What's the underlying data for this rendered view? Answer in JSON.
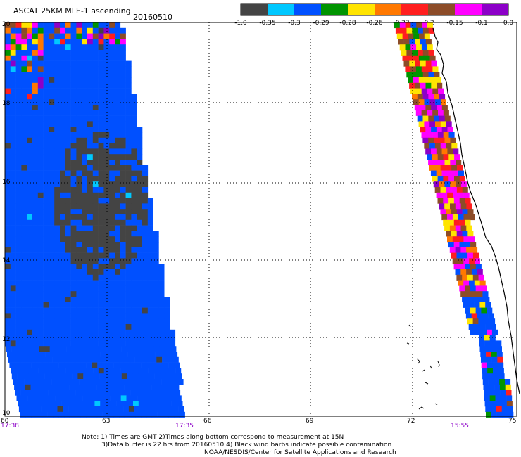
{
  "header": {
    "title": "ASCAT 25KM MLE-1  ascending",
    "date": "20160510"
  },
  "colorbar": {
    "colors": [
      "#444444",
      "#00c8ff",
      "#0050ff",
      "#009400",
      "#ffe400",
      "#ff7800",
      "#ff1e1e",
      "#8c4c28",
      "#ff00ff",
      "#8c00c8"
    ],
    "labels": [
      "-1.0",
      "-0.35",
      "-0.3",
      "-0.29",
      "-0.28",
      "-0.26",
      "-0.23",
      "-0.2",
      "-0.15",
      "-0.1",
      "0.0"
    ]
  },
  "axes": {
    "lon_ticks": [
      "60",
      "63",
      "66",
      "69",
      "72",
      "75"
    ],
    "lat_ticks": [
      "20",
      "18",
      "16",
      "14",
      "12",
      "10"
    ]
  },
  "times": [
    "17:38",
    "17:35",
    "15:55"
  ],
  "notes": [
    "Note:  1) Times are GMT  2)Times along bottom correspond to measurement at 15N",
    "3)Data buffer is 22 hrs from 20160510  4) Black wind barbs indicate possible contamination",
    "NOAA/NESDIS/Center for Satellite Applications and Research"
  ],
  "map_data": {
    "type": "swath-map",
    "lon_range": [
      60,
      75
    ],
    "lat_range": [
      10,
      20
    ],
    "west_swath": {
      "lon": [
        60.0,
        64.6
      ],
      "dominant_value_range": "-0.35 to -0.3",
      "northwest_corner_values": "mixed"
    },
    "east_swath": {
      "lon": [
        71.4,
        75.0
      ],
      "dominant_value_range": "-0.2 to 0.0"
    }
  }
}
